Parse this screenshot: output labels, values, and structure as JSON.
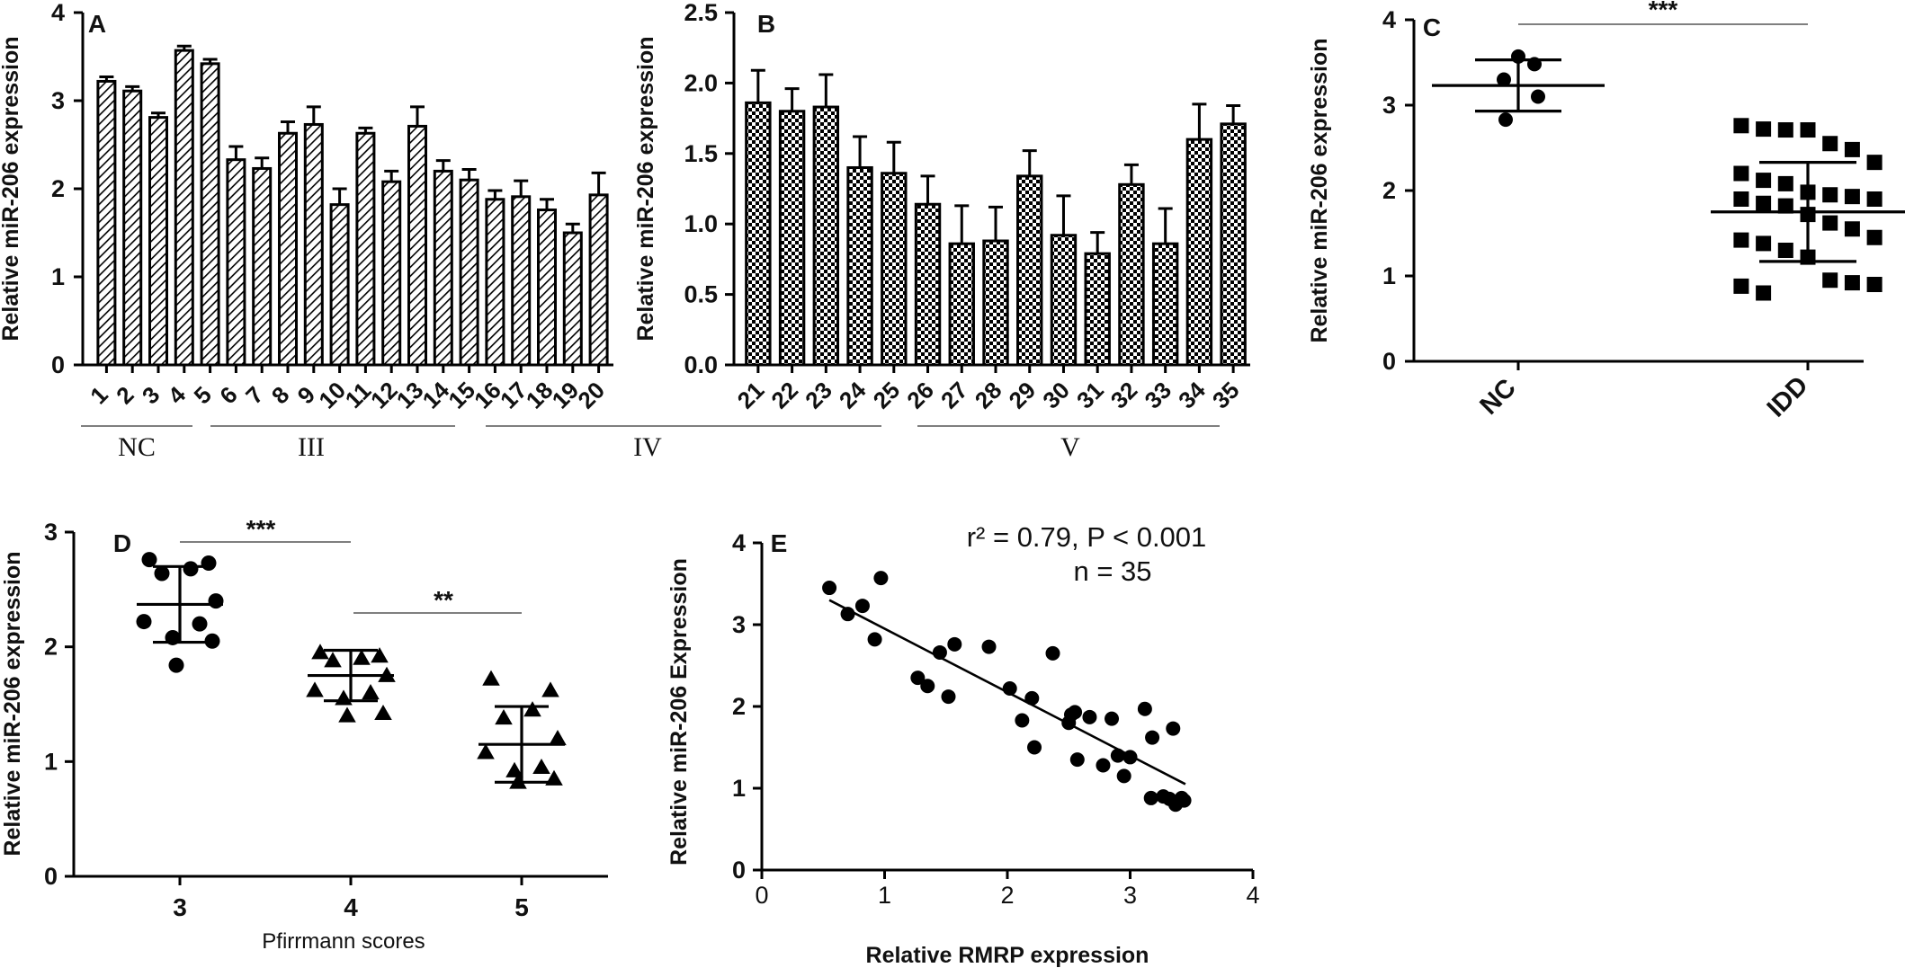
{
  "chart_data": [
    {
      "panel": "A",
      "type": "bar",
      "ylabel": "Relative miR-206 expression",
      "ylim": [
        0,
        4
      ],
      "yticks": [
        "0",
        "1",
        "2",
        "3",
        "4"
      ],
      "categories": [
        "1",
        "2",
        "3",
        "4",
        "5",
        "6",
        "7",
        "8",
        "9",
        "10",
        "11",
        "12",
        "13",
        "14",
        "15",
        "16",
        "17",
        "18",
        "19",
        "20"
      ],
      "values": [
        3.22,
        3.11,
        2.81,
        3.57,
        3.42,
        2.33,
        2.23,
        2.63,
        2.73,
        1.82,
        2.63,
        2.08,
        2.71,
        2.2,
        2.1,
        1.88,
        1.91,
        1.76,
        1.5,
        1.93
      ],
      "errors": [
        0.05,
        0.05,
        0.05,
        0.05,
        0.05,
        0.15,
        0.12,
        0.13,
        0.2,
        0.18,
        0.06,
        0.12,
        0.22,
        0.12,
        0.12,
        0.1,
        0.18,
        0.12,
        0.1,
        0.25
      ],
      "groups": [
        "NC",
        "III",
        "IV",
        "V"
      ],
      "pattern": "diagonal-hatch"
    },
    {
      "panel": "B",
      "type": "bar",
      "ylabel": "Relative miR-206 expression",
      "ylim": [
        0,
        2.5
      ],
      "yticks": [
        "0.0",
        "0.5",
        "1.0",
        "1.5",
        "2.0",
        "2.5"
      ],
      "categories": [
        "21",
        "22",
        "23",
        "24",
        "25",
        "26",
        "27",
        "28",
        "29",
        "30",
        "31",
        "32",
        "33",
        "34",
        "35"
      ],
      "values": [
        1.86,
        1.8,
        1.83,
        1.4,
        1.36,
        1.14,
        0.86,
        0.88,
        1.34,
        0.92,
        0.79,
        1.28,
        0.86,
        1.6,
        1.71
      ],
      "errors": [
        0.23,
        0.16,
        0.23,
        0.22,
        0.22,
        0.2,
        0.27,
        0.24,
        0.18,
        0.28,
        0.15,
        0.14,
        0.25,
        0.25,
        0.13
      ],
      "pattern": "checkerboard"
    },
    {
      "panel": "C",
      "type": "scatter",
      "ylabel": "Relative miR-206 expression",
      "ylim": [
        0,
        4
      ],
      "yticks": [
        "0",
        "1",
        "2",
        "3",
        "4"
      ],
      "categories": [
        "NC",
        "IDD"
      ],
      "significance": "***",
      "groups": [
        {
          "name": "NC",
          "marker": "circle",
          "mean": 3.23,
          "sd": 0.3,
          "values": [
            3.57,
            3.48,
            3.3,
            3.1,
            2.83
          ]
        },
        {
          "name": "IDD",
          "marker": "square",
          "mean": 1.75,
          "sd": 0.58,
          "values": [
            2.76,
            2.72,
            2.71,
            2.71,
            2.55,
            2.48,
            2.33,
            2.2,
            2.12,
            2.08,
            1.98,
            1.95,
            1.93,
            1.9,
            1.9,
            1.85,
            1.82,
            1.72,
            1.62,
            1.55,
            1.45,
            1.42,
            1.38,
            1.3,
            1.22,
            0.95,
            0.92,
            0.9,
            0.88,
            0.8
          ]
        }
      ]
    },
    {
      "panel": "D",
      "type": "scatter",
      "ylabel": "Relative miR-206 expression",
      "xlabel": "Pfirrmann scores",
      "ylim": [
        0,
        3
      ],
      "yticks": [
        "0",
        "1",
        "2",
        "3"
      ],
      "categories": [
        "3",
        "4",
        "5"
      ],
      "significance": [
        {
          "between": [
            "3",
            "4"
          ],
          "label": "***"
        },
        {
          "between": [
            "4",
            "5"
          ],
          "label": "**"
        }
      ],
      "groups": [
        {
          "name": "3",
          "marker": "circle",
          "mean": 2.37,
          "sd": 0.33,
          "values": [
            2.76,
            2.73,
            2.68,
            2.64,
            2.4,
            2.22,
            2.2,
            2.08,
            2.05,
            1.84
          ]
        },
        {
          "name": "4",
          "marker": "triangle",
          "mean": 1.75,
          "sd": 0.22,
          "values": [
            1.95,
            1.92,
            1.9,
            1.88,
            1.75,
            1.62,
            1.6,
            1.55,
            1.42,
            1.4
          ]
        },
        {
          "name": "5",
          "marker": "triangle",
          "mean": 1.15,
          "sd": 0.33,
          "values": [
            1.72,
            1.62,
            1.45,
            1.38,
            1.2,
            1.08,
            0.95,
            0.92,
            0.85,
            0.82
          ]
        }
      ]
    },
    {
      "panel": "E",
      "type": "scatter",
      "ylabel": "Relative miR-206 Expression",
      "xlabel": "Relative RMRP expression",
      "xlim": [
        0,
        4
      ],
      "ylim": [
        0,
        4
      ],
      "xticks": [
        "0",
        "1",
        "2",
        "3",
        "4"
      ],
      "yticks": [
        "0",
        "1",
        "2",
        "3",
        "4"
      ],
      "stat_r2": "r² = 0.79, P < 0.001",
      "stat_n": "n = 35",
      "fit": {
        "x": [
          0.55,
          3.45
        ],
        "y": [
          3.3,
          1.05
        ]
      },
      "points": [
        [
          0.55,
          3.45
        ],
        [
          0.7,
          3.13
        ],
        [
          0.82,
          3.23
        ],
        [
          0.92,
          2.82
        ],
        [
          0.97,
          3.57
        ],
        [
          1.27,
          2.35
        ],
        [
          1.35,
          2.25
        ],
        [
          1.45,
          2.66
        ],
        [
          1.52,
          2.12
        ],
        [
          1.57,
          2.76
        ],
        [
          1.85,
          2.73
        ],
        [
          2.02,
          2.22
        ],
        [
          2.12,
          1.83
        ],
        [
          2.2,
          2.1
        ],
        [
          2.22,
          1.5
        ],
        [
          2.37,
          2.65
        ],
        [
          2.5,
          1.8
        ],
        [
          2.52,
          1.9
        ],
        [
          2.55,
          1.93
        ],
        [
          2.57,
          1.35
        ],
        [
          2.67,
          1.87
        ],
        [
          2.78,
          1.28
        ],
        [
          2.85,
          1.85
        ],
        [
          2.9,
          1.4
        ],
        [
          2.95,
          1.15
        ],
        [
          3.0,
          1.38
        ],
        [
          3.12,
          1.97
        ],
        [
          3.17,
          0.88
        ],
        [
          3.18,
          1.62
        ],
        [
          3.27,
          0.9
        ],
        [
          3.32,
          0.87
        ],
        [
          3.35,
          1.73
        ],
        [
          3.37,
          0.8
        ],
        [
          3.42,
          0.88
        ],
        [
          3.44,
          0.85
        ]
      ]
    }
  ]
}
